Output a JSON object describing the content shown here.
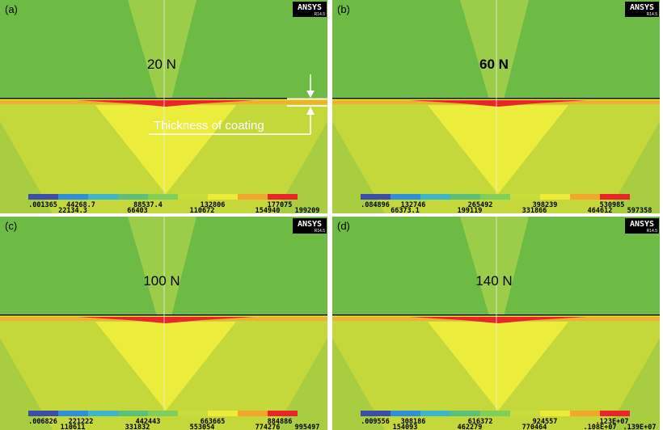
{
  "panels": [
    {
      "label": "(a)",
      "load": "20 N",
      "logo": "ANSYS",
      "version": "R14.5",
      "legend_top": [
        ".001365",
        "44268.7",
        "88537.4",
        "132806",
        "177075"
      ],
      "legend_bottom": [
        "22134.3",
        "66403",
        "110672",
        "154940",
        "199209"
      ],
      "annotation": "Thickness of coating"
    },
    {
      "label": "(b)",
      "load": "60 N",
      "logo": "ANSYS",
      "version": "R14.5",
      "legend_top": [
        ".084896",
        "132746",
        "265492",
        "398239",
        "530985"
      ],
      "legend_bottom": [
        "66373.1",
        "199119",
        "331866",
        "464612",
        "597358"
      ]
    },
    {
      "label": "(c)",
      "load": "100 N",
      "logo": "ANSYS",
      "version": "R14.5",
      "legend_top": [
        ".006826",
        "221222",
        "442443",
        "663665",
        "884886"
      ],
      "legend_bottom": [
        "110611",
        "331832",
        "553054",
        "774276",
        "995497"
      ]
    },
    {
      "label": "(d)",
      "load": "140 N",
      "logo": "ANSYS",
      "version": "R14.5",
      "legend_top": [
        ".009556",
        "308186",
        "616372",
        "924557",
        ".123E+07"
      ],
      "legend_bottom": [
        "154093",
        "462279",
        "770464",
        ".108E+07",
        ".139E+07"
      ]
    }
  ]
}
